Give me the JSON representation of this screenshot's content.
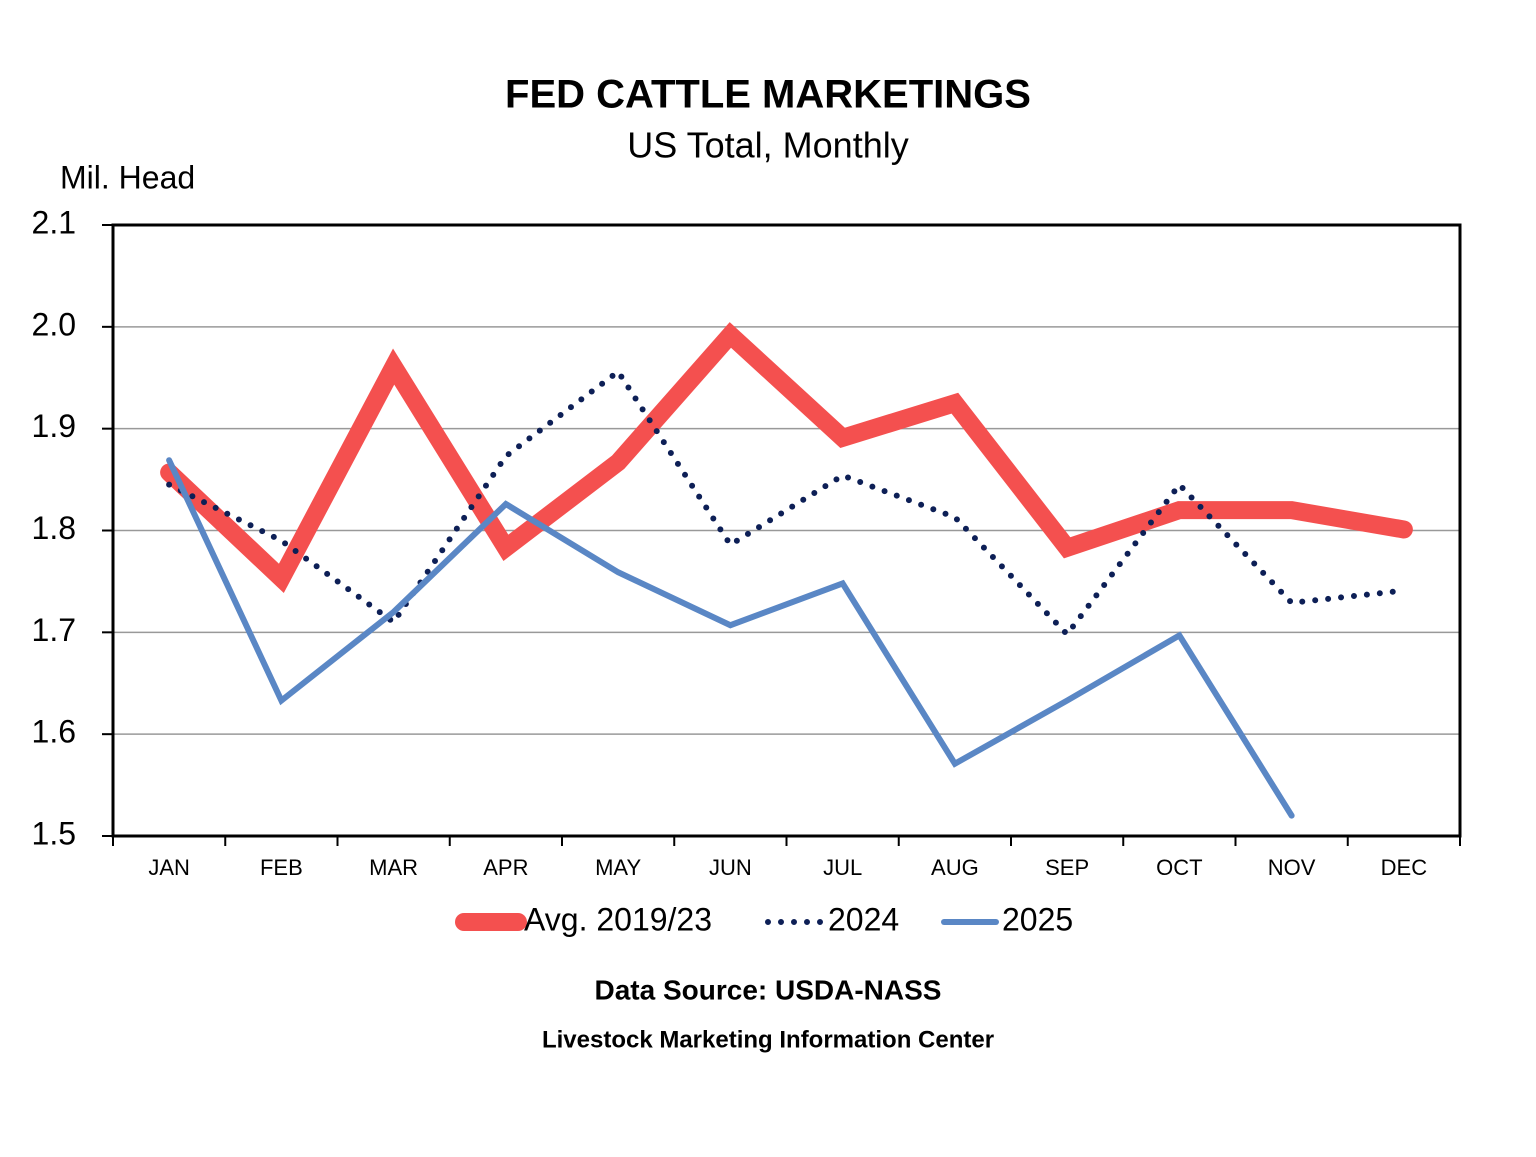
{
  "chart_data": {
    "type": "line",
    "title": "FED CATTLE MARKETINGS",
    "subtitle": "US Total, Monthly",
    "y_label": "Mil. Head",
    "source_note": "Data Source:  USDA-NASS",
    "credit": "Livestock Marketing Information Center",
    "categories": [
      "JAN",
      "FEB",
      "MAR",
      "APR",
      "MAY",
      "JUN",
      "JUL",
      "AUG",
      "SEP",
      "OCT",
      "NOV",
      "DEC"
    ],
    "series": [
      {
        "name": "Avg. 2019/23",
        "color": "#f4504f",
        "values": [
          1.857,
          1.753,
          1.961,
          1.783,
          1.867,
          1.992,
          1.891,
          1.925,
          1.783,
          1.82,
          1.82,
          1.801
        ]
      },
      {
        "name": "2024",
        "color": "#0d1f56",
        "values": [
          1.845,
          1.79,
          1.71,
          1.873,
          1.956,
          1.786,
          1.854,
          1.813,
          1.698,
          1.845,
          1.729,
          1.741
        ]
      },
      {
        "name": "2025",
        "color": "#5a87c5",
        "values": [
          1.869,
          1.633,
          1.72,
          1.826,
          1.759,
          1.707,
          1.748,
          1.571,
          1.633,
          1.697,
          1.52,
          null
        ]
      }
    ],
    "ylim": [
      1.5,
      2.1
    ],
    "yticks": [
      1.5,
      1.6,
      1.7,
      1.8,
      1.9,
      {
        "value": 2,
        "label": "2.0"
      },
      2.1
    ],
    "grid": true
  }
}
